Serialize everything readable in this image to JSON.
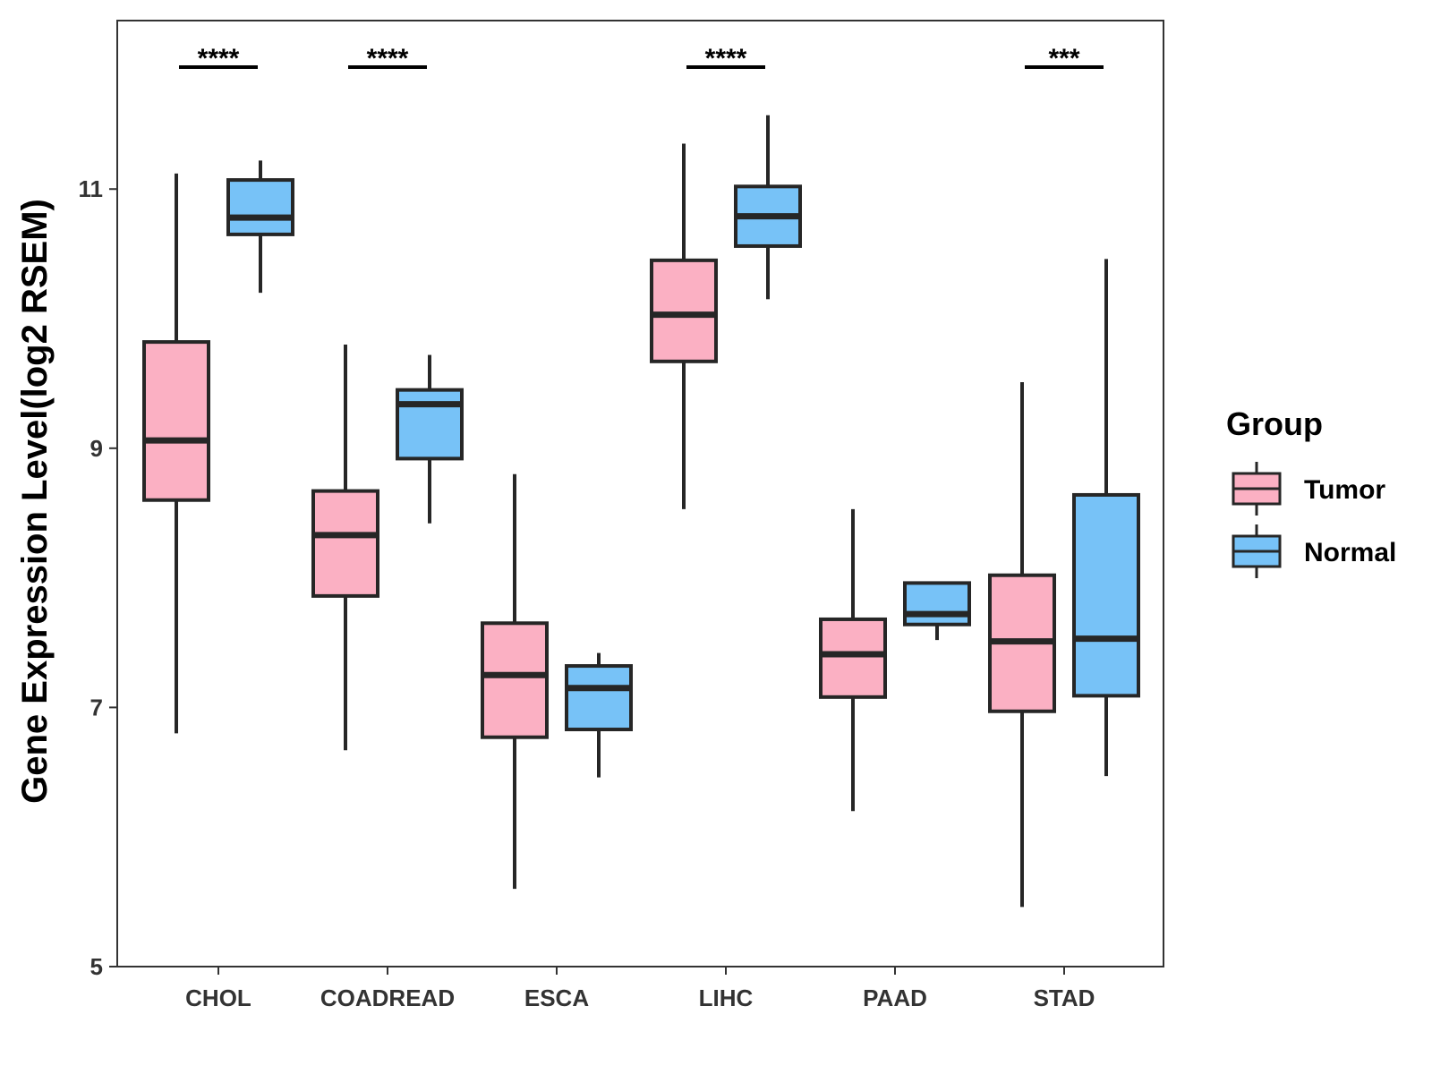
{
  "chart_data": {
    "type": "boxplot",
    "title": "",
    "xlabel": "",
    "ylabel": "Gene Expression Level(log2 RSEM)",
    "ylim": [
      5,
      12.3
    ],
    "yticks": [
      5,
      7,
      9,
      11
    ],
    "ytick_labels": [
      "5",
      "7",
      "9",
      "11"
    ],
    "grid": false,
    "legend": {
      "title": "Group",
      "position": "right",
      "entries": [
        {
          "name": "Tumor",
          "color": "#FBB0C3"
        },
        {
          "name": "Normal",
          "color": "#77C2F7"
        }
      ]
    },
    "categories": [
      "CHOL",
      "COADREAD",
      "ESCA",
      "LIHC",
      "PAAD",
      "STAD"
    ],
    "series": [
      {
        "name": "Tumor",
        "color": "#FBB0C3",
        "boxes": [
          {
            "lower": 6.8,
            "q1": 8.6,
            "median": 9.06,
            "q3": 9.82,
            "upper": 11.12
          },
          {
            "lower": 6.67,
            "q1": 7.86,
            "median": 8.33,
            "q3": 8.67,
            "upper": 9.8
          },
          {
            "lower": 5.6,
            "q1": 6.77,
            "median": 7.25,
            "q3": 7.65,
            "upper": 8.8
          },
          {
            "lower": 8.53,
            "q1": 9.67,
            "median": 10.03,
            "q3": 10.45,
            "upper": 11.35
          },
          {
            "lower": 6.2,
            "q1": 7.08,
            "median": 7.41,
            "q3": 7.68,
            "upper": 8.53
          },
          {
            "lower": 5.46,
            "q1": 6.97,
            "median": 7.51,
            "q3": 8.02,
            "upper": 9.51
          }
        ]
      },
      {
        "name": "Normal",
        "color": "#77C2F7",
        "boxes": [
          {
            "lower": 10.2,
            "q1": 10.65,
            "median": 10.78,
            "q3": 11.07,
            "upper": 11.22
          },
          {
            "lower": 8.42,
            "q1": 8.92,
            "median": 9.34,
            "q3": 9.45,
            "upper": 9.72
          },
          {
            "lower": 6.46,
            "q1": 6.83,
            "median": 7.15,
            "q3": 7.32,
            "upper": 7.42
          },
          {
            "lower": 10.15,
            "q1": 10.56,
            "median": 10.79,
            "q3": 11.02,
            "upper": 11.57
          },
          {
            "lower": 7.52,
            "q1": 7.64,
            "median": 7.72,
            "q3": 7.96,
            "upper": 7.96
          },
          {
            "lower": 6.47,
            "q1": 7.09,
            "median": 7.53,
            "q3": 8.64,
            "upper": 10.46
          }
        ]
      }
    ],
    "significance": [
      {
        "category": "CHOL",
        "label": "****"
      },
      {
        "category": "COADREAD",
        "label": "****"
      },
      {
        "category": "LIHC",
        "label": "****"
      },
      {
        "category": "STAD",
        "label": "***"
      }
    ]
  }
}
